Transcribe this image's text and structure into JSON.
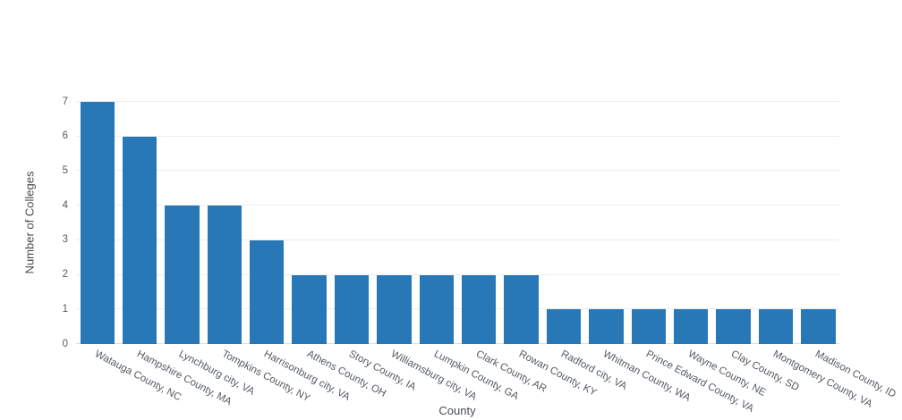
{
  "chart_data": {
    "type": "bar",
    "title": "",
    "xlabel": "County",
    "ylabel": "Number of Colleges",
    "ylim": [
      0,
      7
    ],
    "yticks": [
      0,
      1,
      2,
      3,
      4,
      5,
      6,
      7
    ],
    "grid": true,
    "legend": false,
    "bar_color": "#2878b8",
    "categories": [
      "Watauga County, NC",
      "Hampshire County, MA",
      "Lynchburg city, VA",
      "Tompkins County, NY",
      "Harrisonburg city, VA",
      "Athens County, OH",
      "Story County, IA",
      "Williamsburg city, VA",
      "Lumpkin County, GA",
      "Clark County, AR",
      "Rowan County, KY",
      "Radford city, VA",
      "Whitman County, WA",
      "Prince Edward County, VA",
      "Wayne County, NE",
      "Clay County, SD",
      "Montgomery County, VA",
      "Madison County, ID"
    ],
    "values": [
      7,
      6,
      4,
      4,
      3,
      2,
      2,
      2,
      2,
      2,
      2,
      1,
      1,
      1,
      1,
      1,
      1,
      1
    ]
  }
}
